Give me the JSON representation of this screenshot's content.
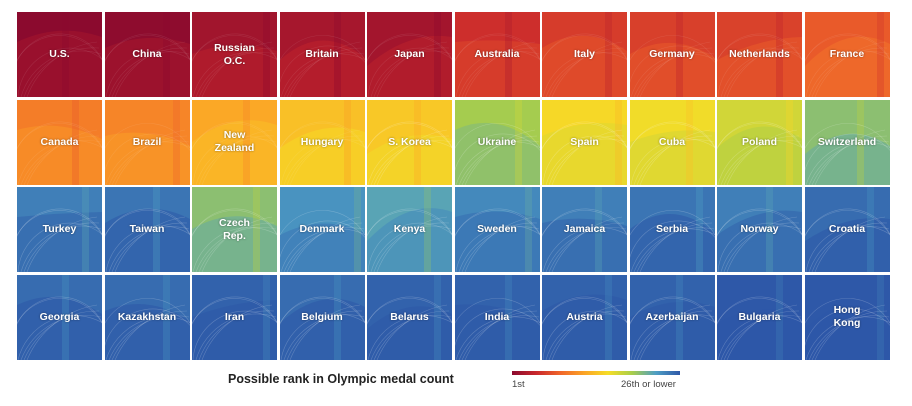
{
  "chart_data": {
    "type": "heatmap",
    "title": "",
    "rank_scale": {
      "min_label": "1st",
      "max_label": "26th or lower",
      "min_rank": 1,
      "max_rank": 26
    },
    "colors": [
      "#8b0a2e",
      "#c8272c",
      "#f0652a",
      "#fba326",
      "#f6dd27",
      "#a9ce4a",
      "#4e9ec4",
      "#2e58a8"
    ],
    "columns": 10,
    "countries": [
      {
        "name": "U.S.",
        "rank": 1
      },
      {
        "name": "China",
        "rank": 1.2
      },
      {
        "name": "Russian\nO.C.",
        "rank": 2.3
      },
      {
        "name": "Britain",
        "rank": 2.6
      },
      {
        "name": "Japan",
        "rank": 2.4
      },
      {
        "name": "Australia",
        "rank": 5
      },
      {
        "name": "Italy",
        "rank": 5.8
      },
      {
        "name": "Germany",
        "rank": 6
      },
      {
        "name": "Netherlands",
        "rank": 6.1
      },
      {
        "name": "France",
        "rank": 7.5
      },
      {
        "name": "Canada",
        "rank": 9.5
      },
      {
        "name": "Brazil",
        "rank": 10
      },
      {
        "name": "New\nZealand",
        "rank": 12
      },
      {
        "name": "Hungary",
        "rank": 13.5
      },
      {
        "name": "S. Korea",
        "rank": 14
      },
      {
        "name": "Ukraine",
        "rank": 19
      },
      {
        "name": "Spain",
        "rank": 15
      },
      {
        "name": "Cuba",
        "rank": 15.5
      },
      {
        "name": "Poland",
        "rank": 17
      },
      {
        "name": "Switzerland",
        "rank": 20
      },
      {
        "name": "Turkey",
        "rank": 24
      },
      {
        "name": "Taiwan",
        "rank": 24.5
      },
      {
        "name": "Czech\nRep.",
        "rank": 20
      },
      {
        "name": "Denmark",
        "rank": 23
      },
      {
        "name": "Kenya",
        "rank": 22
      },
      {
        "name": "Sweden",
        "rank": 23.5
      },
      {
        "name": "Jamaica",
        "rank": 24
      },
      {
        "name": "Serbia",
        "rank": 24.5
      },
      {
        "name": "Norway",
        "rank": 24
      },
      {
        "name": "Croatia",
        "rank": 25
      },
      {
        "name": "Georgia",
        "rank": 25
      },
      {
        "name": "Kazakhstan",
        "rank": 25
      },
      {
        "name": "Iran",
        "rank": 25.5
      },
      {
        "name": "Belgium",
        "rank": 25
      },
      {
        "name": "Belarus",
        "rank": 25.5
      },
      {
        "name": "India",
        "rank": 25.5
      },
      {
        "name": "Austria",
        "rank": 25.5
      },
      {
        "name": "Azerbaijan",
        "rank": 25.5
      },
      {
        "name": "Bulgaria",
        "rank": 26
      },
      {
        "name": "Hong\nKong",
        "rank": 26
      }
    ]
  },
  "legend": {
    "title": "Possible rank in Olympic medal count",
    "min_label": "1st",
    "max_label": "26th or lower"
  }
}
